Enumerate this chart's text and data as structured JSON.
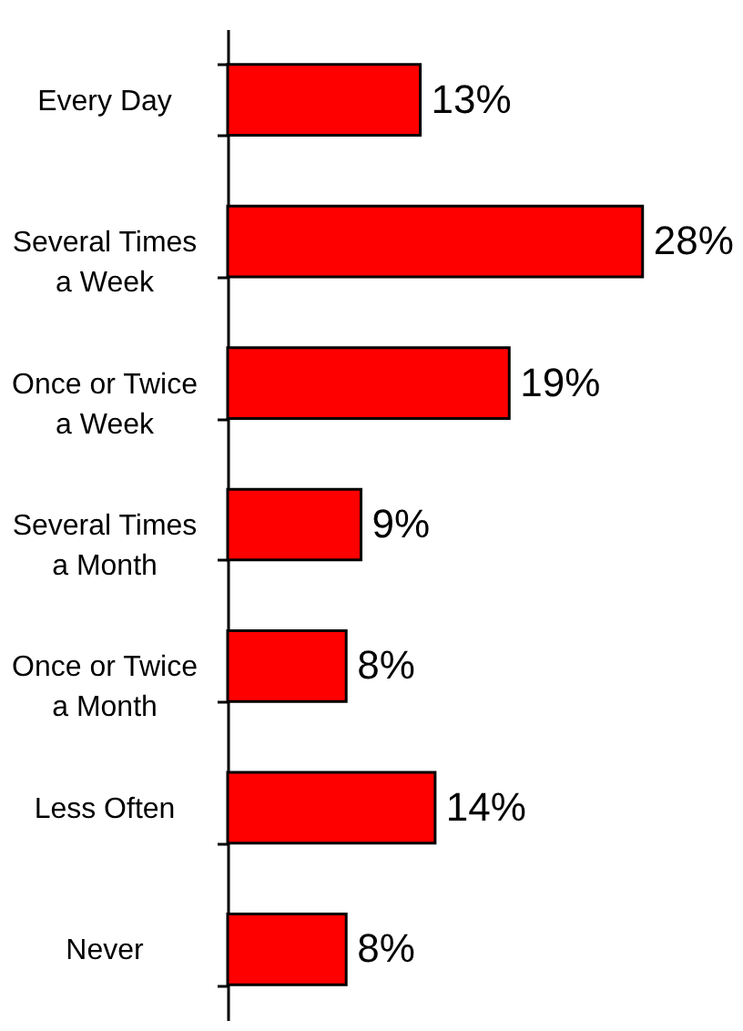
{
  "chart_data": {
    "type": "bar",
    "orientation": "horizontal",
    "categories": [
      "Every Day",
      "Several Times\na Week",
      "Once or Twice\na Week",
      "Several Times\na Month",
      "Once or Twice\na Month",
      "Less Often",
      "Never"
    ],
    "values": [
      13,
      28,
      19,
      9,
      8,
      14,
      8
    ],
    "color": "#ff0000",
    "value_labels": [
      "13%",
      "28%",
      "19%",
      "9%",
      "8%",
      "14%",
      "8%"
    ],
    "tick_labels": "y"
  }
}
